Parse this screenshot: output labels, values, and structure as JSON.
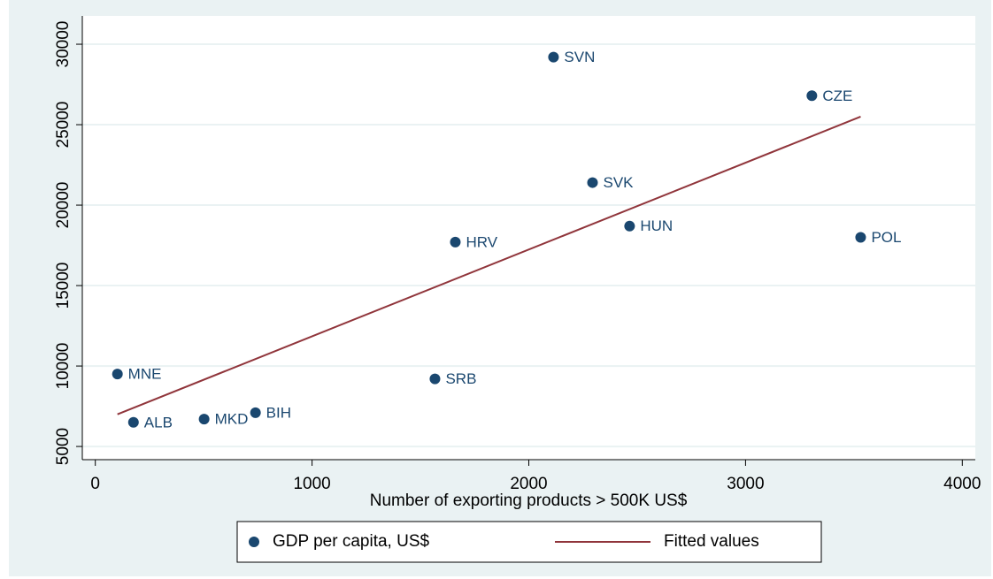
{
  "chart_data": {
    "type": "scatter",
    "x_label": "Number of exporting products > 500K US$",
    "xlim": [
      -60,
      4060
    ],
    "xticks": [
      0,
      1000,
      2000,
      3000,
      4000
    ],
    "ylim": [
      4180,
      31760
    ],
    "yticks": [
      5000,
      10000,
      15000,
      20000,
      25000,
      30000
    ],
    "grid": true,
    "legend": "bottom",
    "series": [
      {
        "name": "GDP per capita, US$",
        "type": "scatter",
        "color": "#1a476f",
        "labels": [
          "SVN",
          "CZE",
          "SVK",
          "HUN",
          "POL",
          "HRV",
          "SRB",
          "MNE",
          "ALB",
          "MKD",
          "BIH"
        ],
        "x": [
          2114,
          3306,
          2294,
          2465,
          3531,
          1661,
          1567,
          102,
          176,
          502,
          739
        ],
        "values": [
          29200,
          26800,
          21400,
          18700,
          18000,
          17700,
          9200,
          9500,
          6500,
          6700,
          7100
        ]
      },
      {
        "name": "Fitted values",
        "type": "line",
        "color": "#90353b",
        "x": [
          102,
          3531
        ],
        "values": [
          7000,
          25500
        ]
      }
    ]
  }
}
